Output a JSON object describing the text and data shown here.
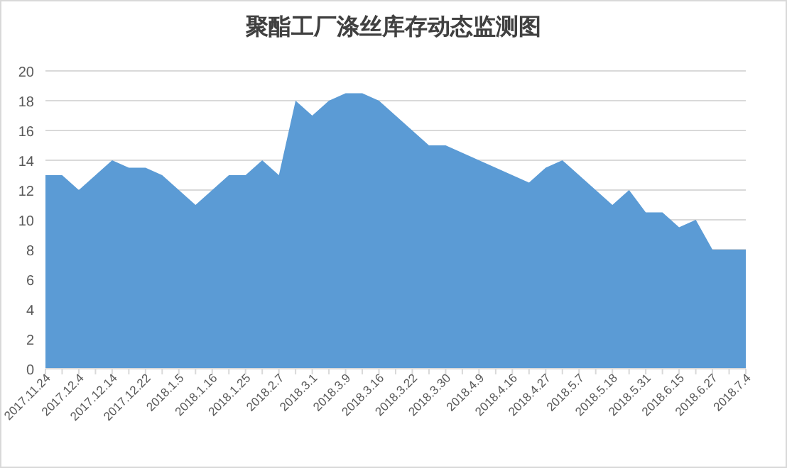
{
  "chart_data": {
    "type": "area",
    "title": "聚酯工厂涤丝库存动态监测图",
    "categories": [
      "2017.11.24",
      null,
      "2017.12.4",
      null,
      "2017.12.14",
      null,
      "2017.12.22",
      null,
      "2018.1.5",
      null,
      "2018.1.16",
      null,
      "2018.1.25",
      null,
      "2018.2.7",
      null,
      "2018.3.1",
      null,
      "2018.3.9",
      null,
      "2018.3.16",
      null,
      "2018.3.22",
      null,
      "2018.3.30",
      null,
      "2018.4.9",
      null,
      "2018.4.16",
      null,
      "2018.4.27",
      null,
      "2018.5.7",
      null,
      "2018.5.18",
      null,
      "2018.5.31",
      null,
      "2018.6.15",
      null,
      "2018.6.27",
      null,
      "2018.7.4"
    ],
    "values": [
      13,
      13,
      12,
      13,
      14,
      13.5,
      13.5,
      13,
      12,
      11,
      12,
      13,
      13,
      14,
      13,
      18,
      17,
      18,
      18.5,
      18.5,
      18,
      17,
      16,
      15,
      15,
      14.5,
      14,
      13.5,
      13,
      12.5,
      13.5,
      14,
      13,
      12,
      11,
      12,
      10.5,
      10.5,
      9.5,
      10,
      8,
      8,
      8
    ],
    "color": "#5b9bd5",
    "ylim": [
      0,
      20
    ],
    "yticks": [
      0,
      2,
      4,
      6,
      8,
      10,
      12,
      14,
      16,
      18,
      20
    ],
    "grid": "y"
  }
}
